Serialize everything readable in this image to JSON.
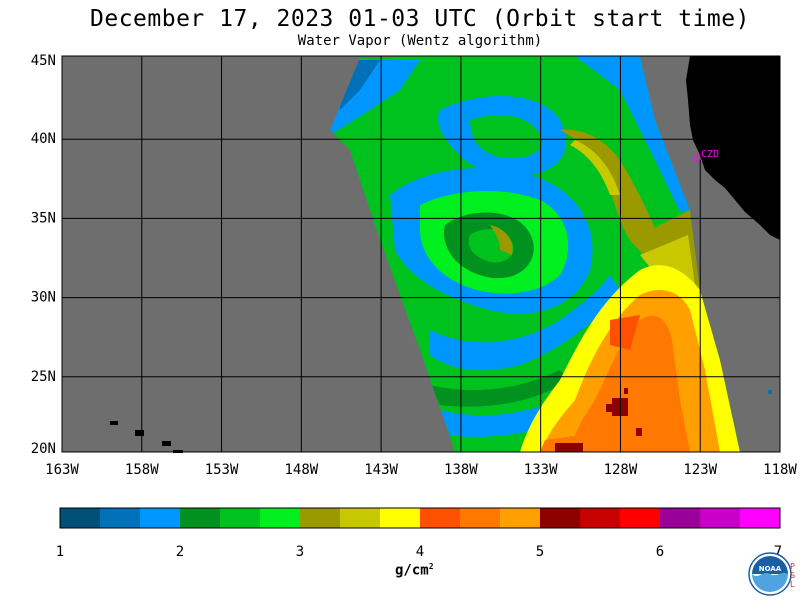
{
  "title": "December 17, 2023  01-03 UTC  (Orbit start time)",
  "subtitle": "Water Vapor (Wentz algorithm)",
  "lat_labels": [
    "45N",
    "40N",
    "35N",
    "30N",
    "25N",
    "20N"
  ],
  "lon_labels": [
    "163W",
    "158W",
    "153W",
    "148W",
    "143W",
    "138W",
    "133W",
    "128W",
    "123W",
    "118W"
  ],
  "station_label": "CZD",
  "colorbar": {
    "colors": [
      "#00507a",
      "#0070b8",
      "#0096ff",
      "#00911e",
      "#00c21e",
      "#00ef1e",
      "#9a9a00",
      "#c8c800",
      "#ffff00",
      "#ff5000",
      "#ff7800",
      "#ffa000",
      "#8c0000",
      "#c80000",
      "#ff0000",
      "#9a009a",
      "#c800c8",
      "#ff00ff"
    ],
    "tick_labels": [
      "1",
      "2",
      "3",
      "4",
      "5",
      "6",
      "7"
    ],
    "units": "g/cm",
    "units_sup": "2"
  },
  "logo_text": "NOAA",
  "psl_text": "PSL",
  "colors": {
    "no_data": "#6e6e6e",
    "land": "#000000",
    "marker": "#ff00ff"
  }
}
